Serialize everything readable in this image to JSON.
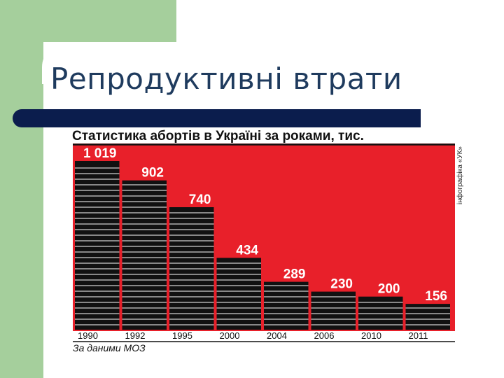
{
  "slide": {
    "title": "Репродуктивні втрати"
  },
  "colors": {
    "accent_green": "#a5cf9c",
    "title_text": "#1f3b5e",
    "rule_navy": "#0b1d4d",
    "chart_background": "#e8202a",
    "bar_fill": "#111111"
  },
  "chart_data": {
    "type": "bar",
    "title": "Статистика абортів в Україні за роками, тис.",
    "categories": [
      "1990",
      "1992",
      "1995",
      "2000",
      "2004",
      "2006",
      "2010",
      "2011"
    ],
    "values": [
      1019,
      902,
      740,
      434,
      289,
      230,
      200,
      156
    ],
    "value_labels": [
      "1 019",
      "902",
      "740",
      "434",
      "289",
      "230",
      "200",
      "156"
    ],
    "xlabel": "",
    "ylabel": "",
    "ylim": [
      0,
      1050
    ],
    "grid": false,
    "legend": "none",
    "source": "За даними МОЗ",
    "credit": "інфографіка «УК»"
  }
}
